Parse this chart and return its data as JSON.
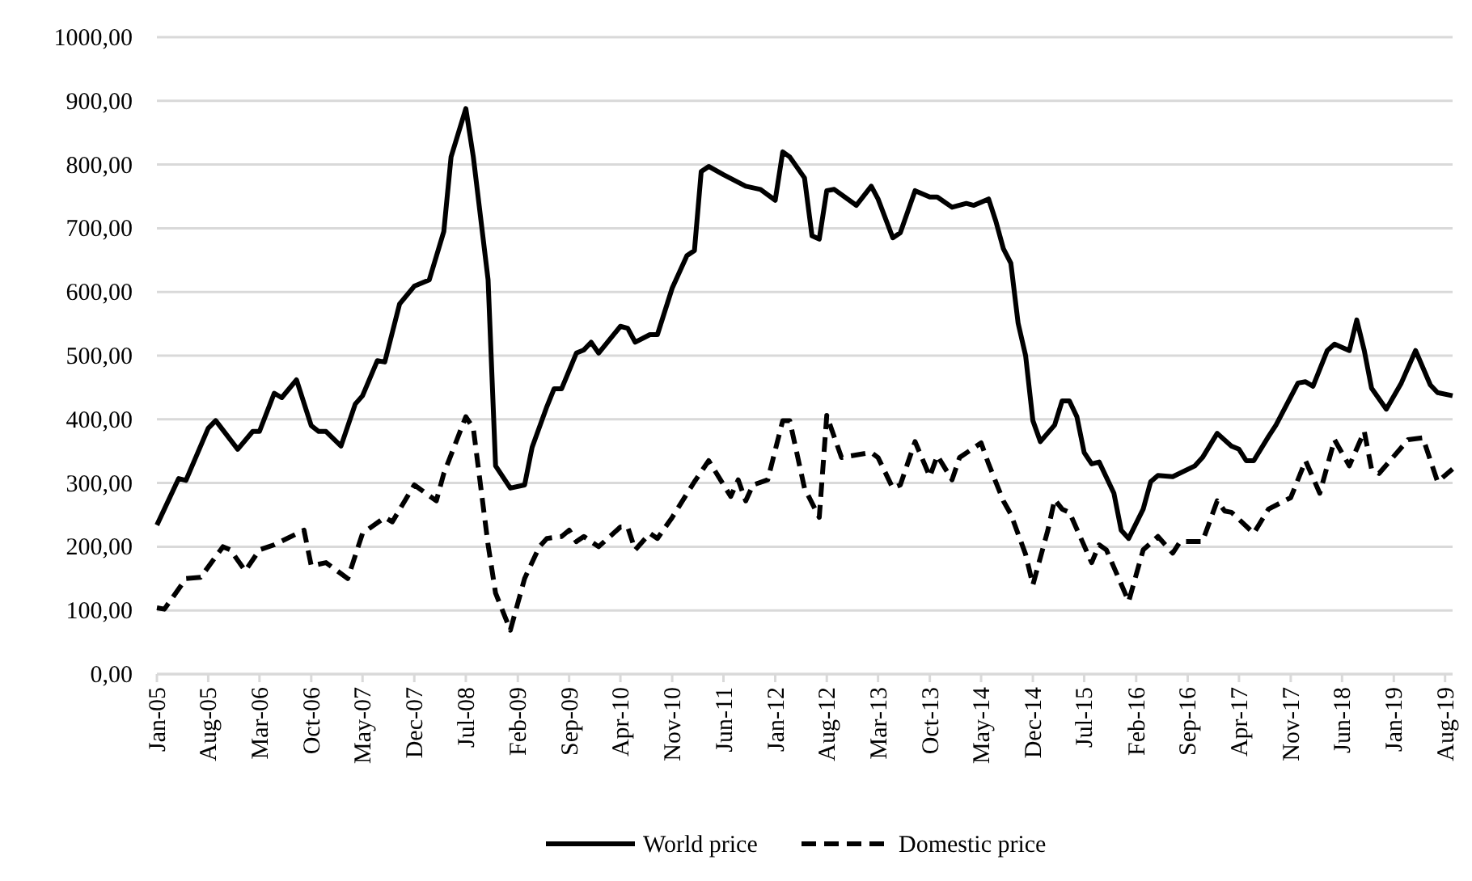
{
  "chart_data": {
    "type": "line",
    "xlim": [
      "2005-01",
      "2019-09"
    ],
    "xticks": [
      {
        "value": "2005-01",
        "label": "Jan-05"
      },
      {
        "value": "2005-08",
        "label": "Aug-05"
      },
      {
        "value": "2006-03",
        "label": "Mar-06"
      },
      {
        "value": "2006-10",
        "label": "Oct-06"
      },
      {
        "value": "2007-05",
        "label": "May-07"
      },
      {
        "value": "2007-12",
        "label": "Dec-07"
      },
      {
        "value": "2008-07",
        "label": "Jul-08"
      },
      {
        "value": "2009-02",
        "label": "Feb-09"
      },
      {
        "value": "2009-09",
        "label": "Sep-09"
      },
      {
        "value": "2010-04",
        "label": "Apr-10"
      },
      {
        "value": "2010-11",
        "label": "Nov-10"
      },
      {
        "value": "2011-06",
        "label": "Jun-11"
      },
      {
        "value": "2012-01",
        "label": "Jan-12"
      },
      {
        "value": "2012-08",
        "label": "Aug-12"
      },
      {
        "value": "2013-03",
        "label": "Mar-13"
      },
      {
        "value": "2013-10",
        "label": "Oct-13"
      },
      {
        "value": "2014-05",
        "label": "May-14"
      },
      {
        "value": "2014-12",
        "label": "Dec-14"
      },
      {
        "value": "2015-07",
        "label": "Jul-15"
      },
      {
        "value": "2016-02",
        "label": "Feb-16"
      },
      {
        "value": "2016-09",
        "label": "Sep-16"
      },
      {
        "value": "2017-04",
        "label": "Apr-17"
      },
      {
        "value": "2017-11",
        "label": "Nov-17"
      },
      {
        "value": "2018-06",
        "label": "Jun-18"
      },
      {
        "value": "2019-01",
        "label": "Jan-19"
      },
      {
        "value": "2019-08",
        "label": "Aug-19"
      }
    ],
    "ylim": [
      0,
      1000
    ],
    "yticks": [
      {
        "value": 0,
        "label": "0,00"
      },
      {
        "value": 100,
        "label": "100,00"
      },
      {
        "value": 200,
        "label": "200,00"
      },
      {
        "value": 300,
        "label": "300,00"
      },
      {
        "value": 400,
        "label": "400,00"
      },
      {
        "value": 500,
        "label": "500,00"
      },
      {
        "value": 600,
        "label": "600,00"
      },
      {
        "value": 700,
        "label": "700,00"
      },
      {
        "value": 800,
        "label": "800,00"
      },
      {
        "value": 900,
        "label": "900,00"
      },
      {
        "value": 1000,
        "label": "1000,00"
      }
    ],
    "grid": "y",
    "legend": "bottom",
    "series": [
      {
        "name": "World price",
        "color": "#000000",
        "line_style": "solid",
        "x": [
          "2005-01",
          "2005-04",
          "2005-05",
          "2005-08",
          "2005-09",
          "2005-12",
          "2006-02",
          "2006-03",
          "2006-05",
          "2006-06",
          "2006-08",
          "2006-10",
          "2006-11",
          "2006-12",
          "2007-02",
          "2007-04",
          "2007-05",
          "2007-07",
          "2007-08",
          "2007-10",
          "2007-12",
          "2008-02",
          "2008-04",
          "2008-05",
          "2008-07",
          "2008-08",
          "2008-10",
          "2008-11",
          "2009-01",
          "2009-03",
          "2009-04",
          "2009-06",
          "2009-07",
          "2009-08",
          "2009-10",
          "2009-11",
          "2009-12",
          "2010-01",
          "2010-04",
          "2010-05",
          "2010-06",
          "2010-08",
          "2010-09",
          "2010-11",
          "2011-01",
          "2011-02",
          "2011-03",
          "2011-04",
          "2011-06",
          "2011-09",
          "2011-11",
          "2012-01",
          "2012-02",
          "2012-03",
          "2012-05",
          "2012-06",
          "2012-07",
          "2012-08",
          "2012-09",
          "2012-12",
          "2013-02",
          "2013-03",
          "2013-05",
          "2013-06",
          "2013-08",
          "2013-10",
          "2013-11",
          "2014-01",
          "2014-03",
          "2014-04",
          "2014-06",
          "2014-07",
          "2014-08",
          "2014-09",
          "2014-10",
          "2014-11",
          "2014-12",
          "2015-01",
          "2015-03",
          "2015-04",
          "2015-05",
          "2015-06",
          "2015-07",
          "2015-08",
          "2015-09",
          "2015-11",
          "2015-12",
          "2016-01",
          "2016-03",
          "2016-04",
          "2016-05",
          "2016-07",
          "2016-10",
          "2016-11",
          "2017-01",
          "2017-03",
          "2017-04",
          "2017-05",
          "2017-06",
          "2017-08",
          "2017-09",
          "2017-12",
          "2018-01",
          "2018-02",
          "2018-04",
          "2018-05",
          "2018-07",
          "2018-08",
          "2018-09",
          "2018-10",
          "2018-12",
          "2019-02",
          "2019-04",
          "2019-06",
          "2019-07",
          "2019-09"
        ],
        "values": [
          234,
          307,
          304,
          386,
          398,
          353,
          381,
          381,
          441,
          434,
          462,
          390,
          381,
          381,
          358,
          424,
          437,
          492,
          490,
          581,
          609,
          619,
          695,
          812,
          888,
          812,
          619,
          327,
          292,
          297,
          356,
          420,
          448,
          448,
          504,
          509,
          521,
          504,
          546,
          543,
          521,
          533,
          533,
          606,
          657,
          665,
          789,
          797,
          784,
          766,
          761,
          744,
          820,
          812,
          779,
          688,
          683,
          759,
          761,
          736,
          766,
          746,
          685,
          693,
          759,
          749,
          749,
          733,
          739,
          736,
          746,
          711,
          668,
          645,
          551,
          500,
          398,
          365,
          391,
          429,
          429,
          404,
          348,
          330,
          333,
          284,
          226,
          213,
          259,
          302,
          312,
          310,
          327,
          340,
          378,
          358,
          353,
          335,
          335,
          373,
          391,
          457,
          459,
          452,
          508,
          518,
          508,
          556,
          508,
          449,
          416,
          457,
          508,
          454,
          442,
          437
        ]
      },
      {
        "name": "Domestic price",
        "color": "#000000",
        "line_style": "dashed",
        "x": [
          "2005-01",
          "2005-02",
          "2005-05",
          "2005-07",
          "2005-10",
          "2005-11",
          "2006-01",
          "2006-03",
          "2006-05",
          "2006-09",
          "2006-10",
          "2006-12",
          "2007-03",
          "2007-05",
          "2007-08",
          "2007-09",
          "2007-12",
          "2008-03",
          "2008-04",
          "2008-07",
          "2008-08",
          "2008-10",
          "2008-11",
          "2009-01",
          "2009-03",
          "2009-05",
          "2009-06",
          "2009-08",
          "2009-09",
          "2009-10",
          "2009-11",
          "2010-01",
          "2010-04",
          "2010-05",
          "2010-06",
          "2010-08",
          "2010-09",
          "2010-11",
          "2011-02",
          "2011-04",
          "2011-07",
          "2011-08",
          "2011-09",
          "2011-10",
          "2011-12",
          "2012-02",
          "2012-03",
          "2012-05",
          "2012-07",
          "2012-08",
          "2012-10",
          "2013-02",
          "2013-03",
          "2013-05",
          "2013-06",
          "2013-08",
          "2013-10",
          "2013-11",
          "2014-01",
          "2014-02",
          "2014-05",
          "2014-06",
          "2014-08",
          "2014-09",
          "2014-11",
          "2014-12",
          "2015-02",
          "2015-03",
          "2015-04",
          "2015-05",
          "2015-08",
          "2015-09",
          "2015-10",
          "2016-01",
          "2016-03",
          "2016-05",
          "2016-07",
          "2016-08",
          "2016-11",
          "2017-01",
          "2017-02",
          "2017-03",
          "2017-06",
          "2017-08",
          "2017-11",
          "2018-01",
          "2018-03",
          "2018-05",
          "2018-07",
          "2018-09",
          "2018-10",
          "2018-11",
          "2019-03",
          "2019-05",
          "2019-07",
          "2019-09"
        ],
        "values": [
          104,
          102,
          150,
          152,
          200,
          195,
          162,
          195,
          203,
          226,
          170,
          175,
          150,
          221,
          246,
          239,
          297,
          272,
          315,
          404,
          386,
          203,
          127,
          69,
          150,
          200,
          213,
          216,
          226,
          208,
          216,
          200,
          231,
          231,
          195,
          221,
          213,
          246,
          302,
          335,
          279,
          305,
          272,
          297,
          305,
          398,
          398,
          292,
          246,
          406,
          340,
          348,
          340,
          292,
          297,
          365,
          310,
          343,
          305,
          340,
          363,
          330,
          272,
          251,
          188,
          140,
          226,
          274,
          259,
          254,
          175,
          203,
          195,
          114,
          195,
          216,
          190,
          208,
          208,
          272,
          256,
          254,
          221,
          259,
          277,
          335,
          284,
          368,
          327,
          381,
          322,
          315,
          368,
          371,
          302,
          322
        ]
      }
    ]
  }
}
